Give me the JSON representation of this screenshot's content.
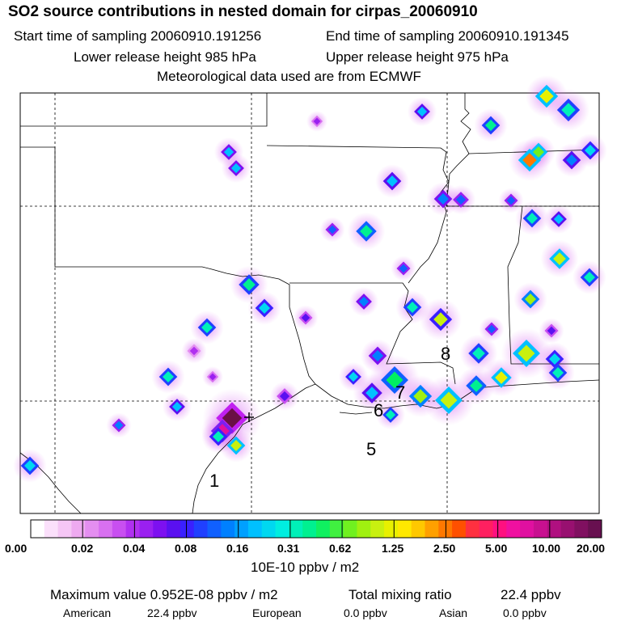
{
  "header": {
    "title": "SO2 source contributions in nested domain for cirpas_20060910",
    "start_label": "Start time of sampling 20060910.191256",
    "end_label": "End time of sampling 20060910.191345",
    "lower_label": "Lower release height  985 hPa",
    "upper_label": "Upper release height  975 hPa",
    "met_label": "Meteorological data used are from ECMWF"
  },
  "map": {
    "labels": [
      "1",
      "5",
      "6",
      "7",
      "8"
    ],
    "marker": "cross-marker"
  },
  "colorbar": {
    "ticks": [
      "0.00",
      "0.02",
      "0.04",
      "0.08",
      "0.16",
      "0.31",
      "0.62",
      "1.25",
      "2.50",
      "5.00",
      "10.00",
      "20.00"
    ],
    "unit": "10E-10 ppbv / m2",
    "colors": [
      "#ffffff",
      "#fbe0fb",
      "#f5c6f5",
      "#eeaaf0",
      "#e48ef0",
      "#d870f0",
      "#c84ff0",
      "#b030f0",
      "#9a20f0",
      "#7d10f0",
      "#5a10f0",
      "#3a20ff",
      "#2040ff",
      "#1060ff",
      "#0080ff",
      "#00a0ff",
      "#00c0ff",
      "#00d8f0",
      "#00eee0",
      "#00f0b8",
      "#00f090",
      "#10f060",
      "#40f040",
      "#70f020",
      "#a0f010",
      "#c8f010",
      "#e8f000",
      "#ffe800",
      "#ffc800",
      "#ffa000",
      "#ff7800",
      "#ff5000",
      "#ff3040",
      "#ff2060",
      "#ff1080",
      "#f010a0",
      "#e010a0",
      "#c81090",
      "#b01080",
      "#981070",
      "#801060",
      "#681050"
    ]
  },
  "footer": {
    "max_label": "Maximum value  0.952E-08 ppbv / m2",
    "total_label": "Total mixing ratio",
    "total_value": "22.4 ppbv",
    "american_label": "American",
    "american_value": "22.4 ppbv",
    "european_label": "European",
    "european_value": "0.0 ppbv",
    "asian_label": "Asian",
    "asian_value": "0.0 ppbv"
  }
}
